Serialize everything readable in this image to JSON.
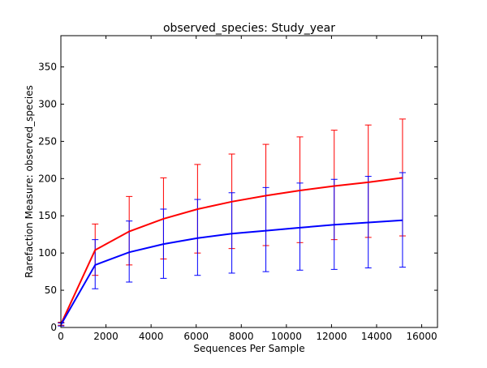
{
  "chart_data": {
    "type": "line",
    "title": "observed_species: Study_year",
    "xlabel": "Sequences Per Sample",
    "ylabel": "Rarefaction Measure: observed_species",
    "xlim": [
      0,
      16700
    ],
    "ylim": [
      0,
      392
    ],
    "xticks": [
      0,
      2000,
      4000,
      6000,
      8000,
      10000,
      12000,
      14000,
      16000
    ],
    "yticks": [
      0,
      50,
      100,
      150,
      200,
      250,
      300,
      350
    ],
    "grid": false,
    "x": [
      10,
      1520,
      3030,
      4550,
      6060,
      7580,
      9090,
      10600,
      12120,
      13630,
      15150
    ],
    "series": [
      {
        "color": "#ff0000",
        "values": [
          5,
          104,
          129,
          146,
          159,
          169,
          177,
          184,
          190,
          195,
          201
        ],
        "err_low": [
          3,
          70,
          84,
          92,
          100,
          106,
          110,
          114,
          118,
          121,
          123
        ],
        "err_high": [
          7,
          139,
          176,
          201,
          219,
          233,
          246,
          256,
          265,
          272,
          280
        ]
      },
      {
        "color": "#0000ff",
        "values": [
          4,
          84,
          101,
          112,
          120,
          126,
          130,
          134,
          138,
          141,
          144
        ],
        "err_low": [
          2,
          52,
          61,
          66,
          70,
          73,
          75,
          77,
          78,
          80,
          81
        ],
        "err_high": [
          6,
          118,
          143,
          159,
          172,
          181,
          188,
          194,
          199,
          203,
          208
        ]
      }
    ]
  }
}
